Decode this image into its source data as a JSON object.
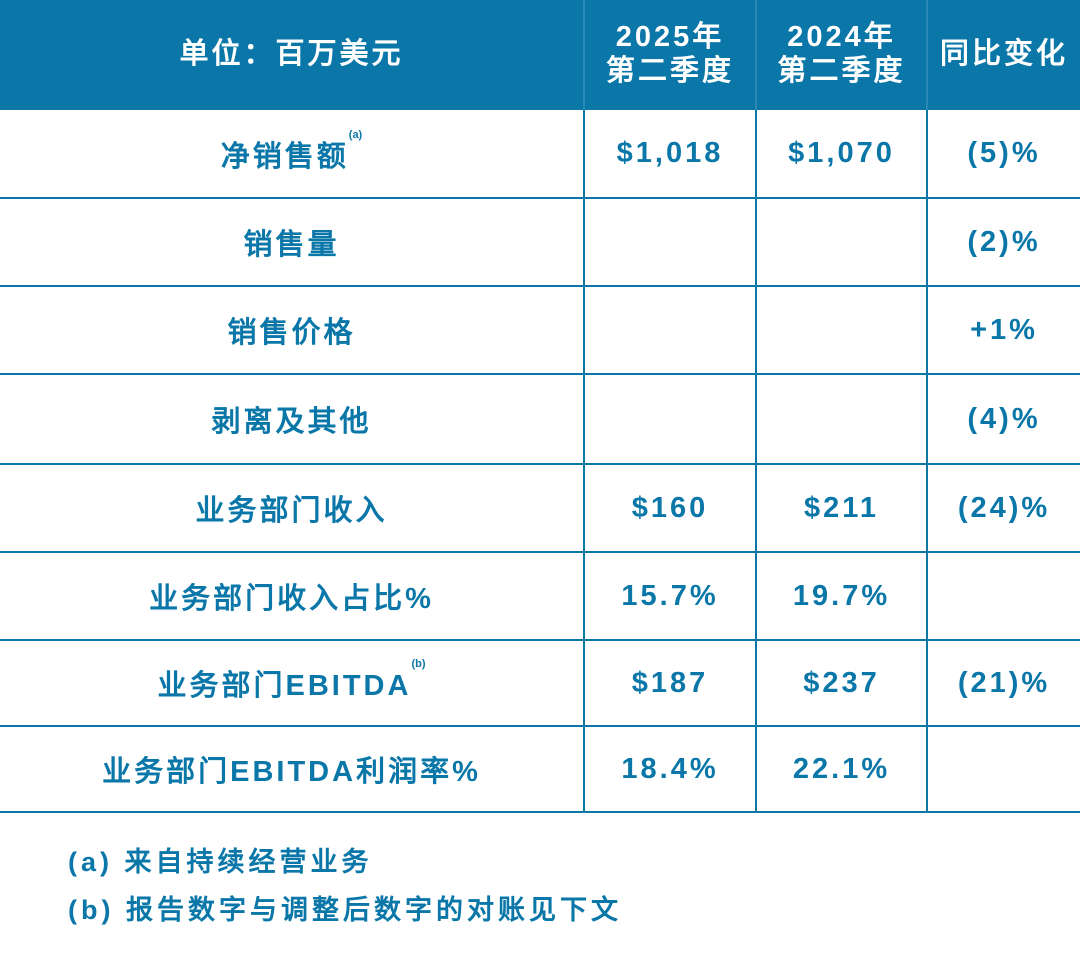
{
  "header": {
    "unit": "单位：百万美元",
    "col1": [
      "2025年",
      "第二季度"
    ],
    "col2": [
      "2024年",
      "第二季度"
    ],
    "col3": "同比变化"
  },
  "rows": [
    {
      "label": "净销售额",
      "sup": "(a)",
      "v1": "$1,018",
      "v2": "$1,070",
      "v3": "(5)%"
    },
    {
      "label": "销售量",
      "sup": "",
      "v1": "",
      "v2": "",
      "v3": "(2)%"
    },
    {
      "label": "销售价格",
      "sup": "",
      "v1": "",
      "v2": "",
      "v3": "+1%"
    },
    {
      "label": "剥离及其他",
      "sup": "",
      "v1": "",
      "v2": "",
      "v3": "(4)%"
    },
    {
      "label": "业务部门收入",
      "sup": "",
      "v1": "$160",
      "v2": "$211",
      "v3": "(24)%"
    },
    {
      "label": "业务部门收入占比%",
      "sup": "",
      "v1": "15.7%",
      "v2": "19.7%",
      "v3": ""
    },
    {
      "label": "业务部门EBITDA",
      "sup": "(b)",
      "v1": "$187",
      "v2": "$237",
      "v3": "(21)%"
    },
    {
      "label": "业务部门EBITDA利润率%",
      "sup": "",
      "v1": "18.4%",
      "v2": "22.1%",
      "v3": ""
    }
  ],
  "notes": [
    "(a) 来自持续经营业务",
    "(b) 报告数字与调整后数字的对账见下文"
  ],
  "colors": {
    "brand": "#0a77a8"
  }
}
